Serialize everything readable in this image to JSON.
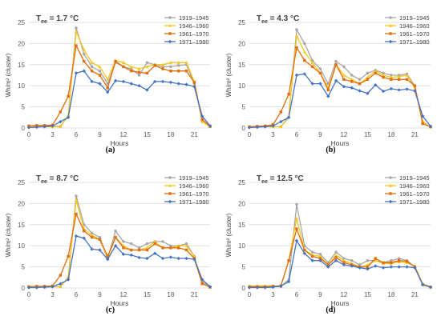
{
  "chart_data": [
    {
      "type": "line",
      "panel_label": "(a)",
      "title_temp": "1.7 °C",
      "ylabel": "Wh/m² (cluster)",
      "xlabel": "Hours",
      "ylim": [
        0,
        25
      ],
      "yticks": [
        0,
        5,
        10,
        15,
        20,
        25
      ],
      "xlim": [
        0,
        23
      ],
      "xticks": [
        0,
        3,
        6,
        9,
        12,
        15,
        18,
        21
      ],
      "grid": true,
      "legend_position": "top-right",
      "x": [
        0,
        1,
        2,
        3,
        4,
        5,
        6,
        7,
        8,
        9,
        10,
        11,
        12,
        13,
        14,
        15,
        16,
        17,
        18,
        19,
        20,
        21,
        22,
        23
      ],
      "series": [
        {
          "name": "1919–1945",
          "color": "#a6a6a6",
          "values": [
            0.3,
            0.4,
            0.4,
            0.4,
            0.4,
            2.8,
            23.7,
            17.5,
            14.5,
            13.5,
            10.5,
            15.5,
            14.5,
            14.0,
            12.5,
            15.5,
            15.0,
            14.5,
            14.5,
            14.8,
            15.0,
            10.5,
            1.5,
            0.3
          ]
        },
        {
          "name": "1946–1960",
          "color": "#f5c518",
          "values": [
            0.3,
            0.3,
            0.3,
            0.3,
            0.3,
            3.0,
            22.8,
            18.5,
            15.5,
            14.5,
            11.5,
            16.0,
            15.5,
            14.5,
            14.0,
            14.5,
            15.0,
            15.0,
            15.5,
            15.5,
            15.5,
            11.0,
            1.5,
            0.3
          ]
        },
        {
          "name": "1961–1970",
          "color": "#e46c0a",
          "values": [
            0.5,
            0.6,
            0.6,
            0.7,
            3.8,
            7.5,
            19.5,
            15.8,
            13.5,
            12.5,
            9.5,
            15.8,
            14.5,
            13.5,
            13.2,
            13.0,
            14.8,
            14.0,
            13.5,
            13.5,
            13.5,
            10.8,
            2.0,
            0.4
          ]
        },
        {
          "name": "1971–1980",
          "color": "#4472c4",
          "values": [
            0.1,
            0.2,
            0.3,
            0.5,
            1.5,
            2.5,
            13.0,
            13.5,
            11.0,
            10.5,
            8.5,
            11.2,
            11.0,
            10.5,
            10.0,
            9.0,
            11.0,
            11.0,
            10.8,
            10.5,
            10.3,
            9.8,
            2.8,
            0.5
          ]
        }
      ]
    },
    {
      "type": "line",
      "panel_label": "(b)",
      "title_temp": "4.3 °C",
      "ylabel": "Wh/m² (cluster)",
      "xlabel": "Hours",
      "ylim": [
        0,
        25
      ],
      "yticks": [
        0,
        5,
        10,
        15,
        20,
        25
      ],
      "xlim": [
        0,
        23
      ],
      "xticks": [
        0,
        3,
        6,
        9,
        12,
        15,
        18,
        21
      ],
      "grid": true,
      "legend_position": "top-right",
      "x": [
        0,
        1,
        2,
        3,
        4,
        5,
        6,
        7,
        8,
        9,
        10,
        11,
        12,
        13,
        14,
        15,
        16,
        17,
        18,
        19,
        20,
        21,
        22,
        23
      ],
      "series": [
        {
          "name": "1919–1945",
          "color": "#a6a6a6",
          "values": [
            0.2,
            0.3,
            0.3,
            0.3,
            0.3,
            2.5,
            23.3,
            20.0,
            16.0,
            14.0,
            10.5,
            15.8,
            14.5,
            12.5,
            11.5,
            13.0,
            13.7,
            13.0,
            12.5,
            12.5,
            12.8,
            10.0,
            1.5,
            0.2
          ]
        },
        {
          "name": "1946–1960",
          "color": "#f5c518",
          "values": [
            0.2,
            0.2,
            0.3,
            0.3,
            0.3,
            2.8,
            21.8,
            18.0,
            15.5,
            13.0,
            9.5,
            15.0,
            12.5,
            11.5,
            10.5,
            12.0,
            13.5,
            12.5,
            12.0,
            12.2,
            12.5,
            9.5,
            1.5,
            0.2
          ]
        },
        {
          "name": "1961–1970",
          "color": "#e46c0a",
          "values": [
            0.3,
            0.4,
            0.5,
            0.8,
            3.8,
            8.0,
            19.0,
            16.0,
            14.5,
            13.0,
            9.0,
            15.0,
            11.5,
            11.0,
            10.5,
            11.5,
            13.0,
            12.0,
            11.5,
            11.5,
            11.5,
            10.0,
            1.0,
            0.3
          ]
        },
        {
          "name": "1971–1980",
          "color": "#4472c4",
          "values": [
            0.1,
            0.2,
            0.3,
            0.5,
            1.5,
            2.5,
            12.5,
            12.8,
            10.5,
            10.5,
            7.5,
            11.2,
            9.8,
            9.5,
            8.8,
            8.2,
            10.2,
            8.7,
            9.3,
            9.0,
            9.2,
            8.8,
            2.8,
            0.4
          ]
        }
      ]
    },
    {
      "type": "line",
      "panel_label": "(c)",
      "title_temp": "8.7 °C",
      "ylabel": "Wh/m² (cluster)",
      "xlabel": "Hours",
      "ylim": [
        0,
        25
      ],
      "yticks": [
        0,
        5,
        10,
        15,
        20,
        25
      ],
      "xlim": [
        0,
        23
      ],
      "xticks": [
        0,
        3,
        6,
        9,
        12,
        15,
        18,
        21
      ],
      "grid": true,
      "legend_position": "top-right",
      "x": [
        0,
        1,
        2,
        3,
        4,
        5,
        6,
        7,
        8,
        9,
        10,
        11,
        12,
        13,
        14,
        15,
        16,
        17,
        18,
        19,
        20,
        21,
        22,
        23
      ],
      "series": [
        {
          "name": "1919–1945",
          "color": "#a6a6a6",
          "values": [
            0.2,
            0.2,
            0.2,
            0.3,
            0.3,
            2.5,
            21.8,
            15.0,
            13.0,
            12.0,
            7.0,
            13.5,
            11.0,
            10.5,
            9.5,
            10.5,
            11.0,
            11.0,
            10.0,
            10.0,
            10.5,
            7.5,
            1.5,
            0.2
          ]
        },
        {
          "name": "1946–1960",
          "color": "#f5c518",
          "values": [
            0.2,
            0.2,
            0.2,
            0.3,
            0.3,
            2.5,
            20.8,
            14.0,
            12.5,
            11.5,
            7.0,
            12.0,
            10.0,
            9.0,
            9.0,
            9.5,
            11.0,
            9.5,
            9.5,
            10.0,
            10.0,
            7.5,
            1.2,
            0.2
          ]
        },
        {
          "name": "1961–1970",
          "color": "#e46c0a",
          "values": [
            0.3,
            0.4,
            0.4,
            0.5,
            3.0,
            7.5,
            17.5,
            13.5,
            12.0,
            11.5,
            7.5,
            12.0,
            9.5,
            9.0,
            9.0,
            9.0,
            10.5,
            9.5,
            9.5,
            9.5,
            9.0,
            7.0,
            1.0,
            0.2
          ]
        },
        {
          "name": "1971–1980",
          "color": "#4472c4",
          "values": [
            0.1,
            0.1,
            0.2,
            0.3,
            1.0,
            2.0,
            12.3,
            11.8,
            9.2,
            9.0,
            6.8,
            10.0,
            8.0,
            7.8,
            7.2,
            7.0,
            8.2,
            7.0,
            7.3,
            7.0,
            7.0,
            6.8,
            2.0,
            0.3
          ]
        }
      ]
    },
    {
      "type": "line",
      "panel_label": "(d)",
      "title_temp": "12.5 °C",
      "ylabel": "Wh/m² (cluster)",
      "xlabel": "Hours",
      "ylim": [
        0,
        25
      ],
      "yticks": [
        0,
        5,
        10,
        15,
        20,
        25
      ],
      "xlim": [
        0,
        23
      ],
      "xticks": [
        0,
        3,
        6,
        9,
        12,
        15,
        18,
        21
      ],
      "grid": true,
      "legend_position": "top-right",
      "x": [
        0,
        1,
        2,
        3,
        4,
        5,
        6,
        7,
        8,
        9,
        10,
        11,
        12,
        13,
        14,
        15,
        16,
        17,
        18,
        19,
        20,
        21,
        22,
        23
      ],
      "series": [
        {
          "name": "1919–1945",
          "color": "#a6a6a6",
          "values": [
            0.2,
            0.2,
            0.2,
            0.3,
            0.3,
            2.0,
            19.8,
            10.0,
            8.5,
            8.0,
            6.0,
            8.5,
            7.0,
            6.5,
            5.5,
            6.5,
            6.5,
            6.0,
            6.5,
            7.0,
            6.5,
            5.0,
            0.8,
            0.2
          ]
        },
        {
          "name": "1946–1960",
          "color": "#f5c518",
          "values": [
            0.5,
            0.5,
            0.5,
            0.5,
            0.5,
            6.5,
            16.5,
            9.0,
            7.8,
            7.5,
            5.5,
            7.8,
            6.5,
            5.8,
            5.0,
            5.5,
            6.5,
            5.8,
            5.8,
            6.2,
            6.0,
            5.2,
            1.0,
            0.3
          ]
        },
        {
          "name": "1961–1970",
          "color": "#e46c0a",
          "values": [
            0.3,
            0.3,
            0.3,
            0.4,
            0.5,
            6.5,
            14.0,
            9.0,
            7.5,
            7.0,
            5.5,
            7.2,
            6.0,
            5.5,
            5.0,
            5.0,
            7.0,
            6.0,
            6.0,
            6.5,
            6.3,
            5.0,
            0.8,
            0.2
          ]
        },
        {
          "name": "1971–1980",
          "color": "#4472c4",
          "values": [
            0.1,
            0.1,
            0.1,
            0.2,
            0.5,
            1.5,
            11.2,
            8.2,
            6.5,
            6.5,
            5.0,
            6.5,
            5.5,
            5.2,
            4.8,
            4.5,
            5.2,
            4.8,
            5.0,
            5.0,
            5.0,
            4.8,
            0.8,
            0.2
          ]
        }
      ]
    }
  ]
}
